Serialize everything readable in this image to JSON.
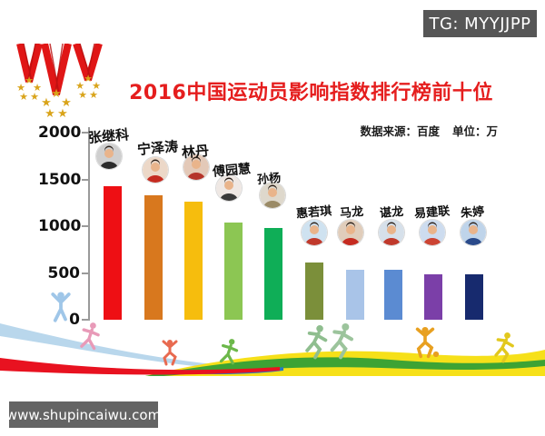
{
  "header": {
    "tg_badge": "TG: MYYJJPP",
    "title": "2016中国运动员影响指数排行榜前十位",
    "source_label": "数据来源：百度",
    "unit_label": "单位：万"
  },
  "footer": {
    "site": "www.shupincaiwu.com"
  },
  "icons": {
    "medals": "olympic-medals-icon",
    "waves": "ribbon-waves-decoration",
    "silhouettes": "sport-silhouettes-decoration"
  },
  "chart_data": {
    "type": "bar",
    "title": "2016中国运动员影响指数排行榜前十位",
    "source": "数据来源：百度",
    "unit": "万",
    "categories": [
      "张继科",
      "宁泽涛",
      "林丹",
      "傅园慧",
      "孙杨",
      "惠若琪",
      "马龙",
      "谌龙",
      "易建联",
      "朱婷"
    ],
    "values": [
      1430,
      1330,
      1265,
      1040,
      985,
      615,
      535,
      532,
      490,
      482
    ],
    "bar_colors": [
      "#ee0f14",
      "#d8781e",
      "#f6bd0d",
      "#8cc653",
      "#0fae57",
      "#7b8f3a",
      "#a9c4e8",
      "#5b8bd2",
      "#7b3fa8",
      "#172a6e"
    ],
    "xlabel": "",
    "ylabel": "",
    "ylim": [
      0,
      2000
    ],
    "yticks": [
      2000,
      1500,
      1000,
      500,
      0
    ],
    "grid": false,
    "legend": null
  }
}
